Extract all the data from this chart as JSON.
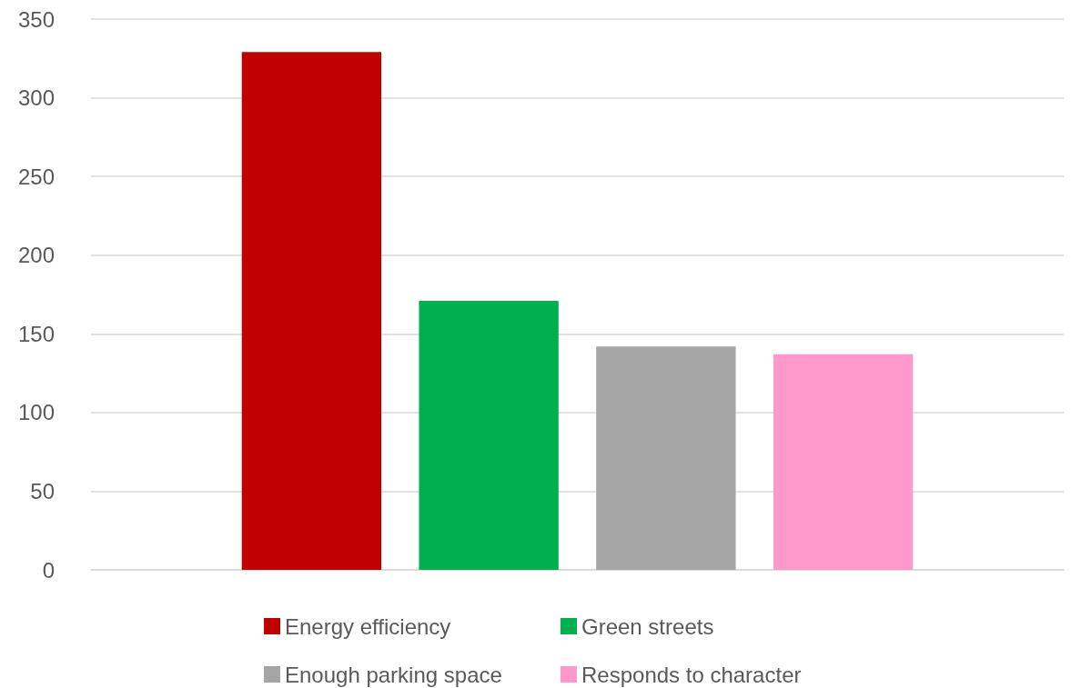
{
  "chart_data": {
    "type": "bar",
    "categories": [
      null
    ],
    "series": [
      {
        "name": "Energy efficiency",
        "color": "#c00000",
        "values": [
          329
        ]
      },
      {
        "name": "Green streets",
        "color": "#00b050",
        "values": [
          171
        ]
      },
      {
        "name": "Enough parking space",
        "color": "#a5a5a5",
        "values": [
          142
        ]
      },
      {
        "name": "Responds to character",
        "color": "#ff99cc",
        "values": [
          137
        ]
      }
    ],
    "ylim": [
      0,
      350
    ],
    "yticks": [
      0,
      50,
      100,
      150,
      200,
      250,
      300,
      350
    ],
    "grid": "y",
    "legend": "bottom"
  }
}
